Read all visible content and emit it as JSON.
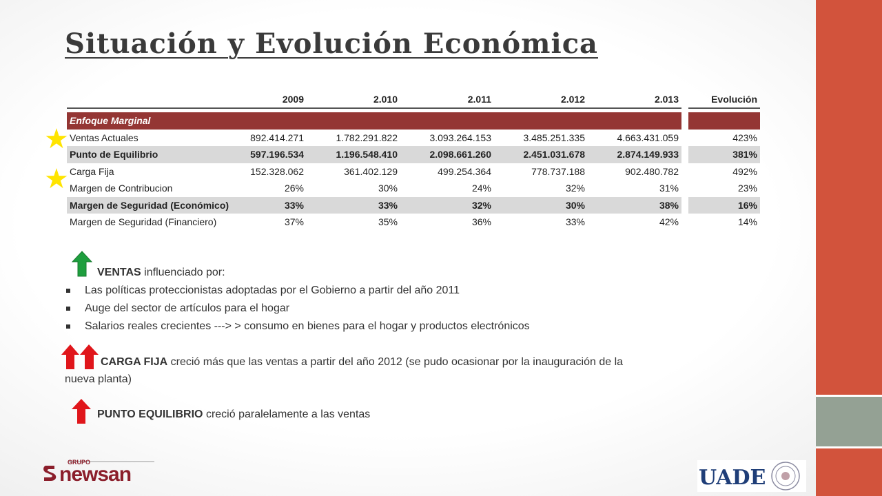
{
  "slide": {
    "title": "Situación y Evolución Económica"
  },
  "table": {
    "headers": [
      "",
      "2009",
      "2.010",
      "2.011",
      "2.012",
      "2.013",
      "Evolución"
    ],
    "section_label": "Enfoque Marginal",
    "rows": [
      {
        "label": "Ventas Actuales",
        "values": [
          "892.414.271",
          "1.782.291.822",
          "3.093.264.153",
          "3.485.251.335",
          "4.663.431.059"
        ],
        "evolution": "423%",
        "bold": false,
        "shaded": false
      },
      {
        "label": "Punto de Equilibrio",
        "values": [
          "597.196.534",
          "1.196.548.410",
          "2.098.661.260",
          "2.451.031.678",
          "2.874.149.933"
        ],
        "evolution": "381%",
        "bold": true,
        "shaded": true
      },
      {
        "label": "Carga Fija",
        "values": [
          "152.328.062",
          "361.402.129",
          "499.254.364",
          "778.737.188",
          "902.480.782"
        ],
        "evolution": "492%",
        "bold": false,
        "shaded": false
      },
      {
        "label": "Margen de Contribucion",
        "values": [
          "26%",
          "30%",
          "24%",
          "32%",
          "31%"
        ],
        "evolution": "23%",
        "bold": false,
        "shaded": false
      },
      {
        "label": "Margen de Seguridad (Económico)",
        "values": [
          "33%",
          "33%",
          "32%",
          "30%",
          "38%"
        ],
        "evolution": "16%",
        "bold": true,
        "shaded": true
      },
      {
        "label": "Margen de Seguridad (Financiero)",
        "values": [
          "37%",
          "35%",
          "36%",
          "33%",
          "42%"
        ],
        "evolution": "14%",
        "bold": false,
        "shaded": false
      }
    ]
  },
  "notes": {
    "ventas": {
      "bold": "VENTAS",
      "rest": " influenciado por:"
    },
    "bullets": [
      "Las políticas proteccionistas adoptadas por el Gobierno a partir del año 2011",
      "Auge del sector de artículos para el hogar",
      "Salarios reales crecientes ---> > consumo en bienes para el hogar y productos electrónicos"
    ],
    "carga_fija": {
      "bold": "CARGA FIJA",
      "rest": " creció más que las ventas a partir del año 2012 (se pudo ocasionar por la inauguración de la",
      "rest2": "nueva planta)"
    },
    "punto_equilibrio": {
      "bold": "PUNTO EQUILIBRIO",
      "rest": " creció paralelamente  a las ventas"
    }
  },
  "logos": {
    "newsan": {
      "small": "GRUPO",
      "name": "newsan"
    },
    "uade": {
      "name": "UADE"
    }
  },
  "colors": {
    "accent_red": "#d2533c",
    "accent_grey": "#94a194",
    "table_header": "#943634",
    "arrow_green": "#1e9e3e",
    "arrow_red": "#e0161b"
  }
}
